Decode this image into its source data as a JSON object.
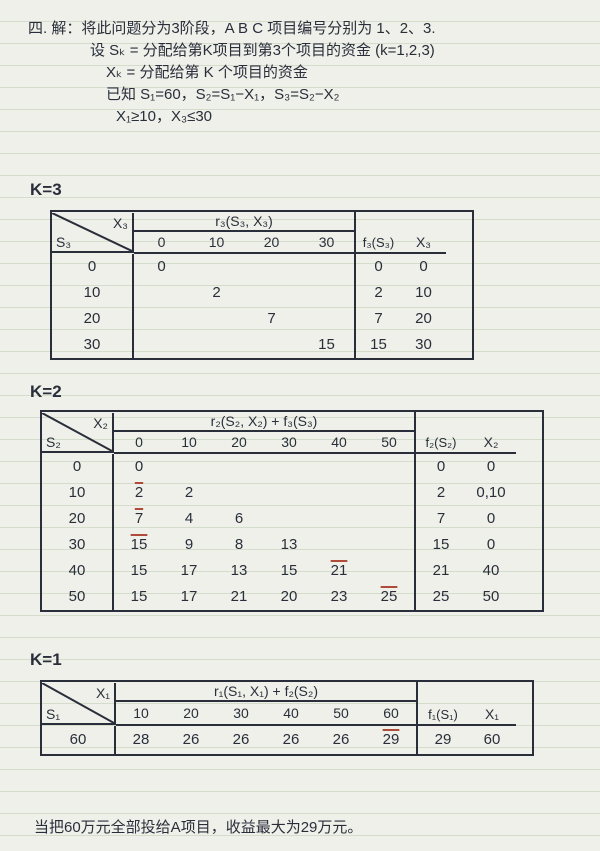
{
  "prose": {
    "l1": "四. 解：将此问题分为3阶段，A B C 项目编号分别为 1、2、3.",
    "l2": "设 Sₖ = 分配给第K项目到第3个项目的资金 (k=1,2,3)",
    "l3": "Xₖ = 分配给第 K 个项目的资金",
    "l4": "已知 S₁=60，S₂=S₁−X₁，S₃=S₂−X₂",
    "l5": "X₁≥10，X₃≤30"
  },
  "k3": {
    "label": "K=3",
    "diag_top": "X₃",
    "diag_left": "S₃",
    "group_label": "r₃(S₃, X₃)",
    "group_cols": [
      "0",
      "10",
      "20",
      "30"
    ],
    "f_label": "f₃(S₃)",
    "xstar_label": "X₃",
    "rows": [
      {
        "s": "0",
        "cells": [
          "0",
          "",
          "",
          ""
        ],
        "f": "0",
        "x": "0"
      },
      {
        "s": "10",
        "cells": [
          "",
          "2",
          "",
          ""
        ],
        "f": "2",
        "x": "10"
      },
      {
        "s": "20",
        "cells": [
          "",
          "",
          "7",
          ""
        ],
        "f": "7",
        "x": "20"
      },
      {
        "s": "30",
        "cells": [
          "",
          "",
          "",
          "15"
        ],
        "f": "15",
        "x": "30"
      }
    ]
  },
  "k2": {
    "label": "K=2",
    "diag_top": "X₂",
    "diag_left": "S₂",
    "group_label": "r₂(S₂, X₂) + f₃(S₃)",
    "group_cols": [
      "0",
      "10",
      "20",
      "30",
      "40",
      "50"
    ],
    "f_label": "f₂(S₂)",
    "xstar_label": "X₂",
    "rows": [
      {
        "s": "0",
        "cells": [
          "0",
          "",
          "",
          "",
          "",
          ""
        ],
        "f": "0",
        "x": "0"
      },
      {
        "s": "10",
        "cells": [
          "2",
          "2",
          "",
          "",
          "",
          ""
        ],
        "ov": [
          0
        ],
        "f": "2",
        "x": "0,10"
      },
      {
        "s": "20",
        "cells": [
          "7",
          "4",
          "6",
          "",
          "",
          ""
        ],
        "ov": [
          0
        ],
        "f": "7",
        "x": "0"
      },
      {
        "s": "30",
        "cells": [
          "15",
          "9",
          "8",
          "13",
          "",
          ""
        ],
        "ov": [
          0
        ],
        "f": "15",
        "x": "0"
      },
      {
        "s": "40",
        "cells": [
          "15",
          "17",
          "13",
          "15",
          "21",
          ""
        ],
        "ov": [
          4
        ],
        "f": "21",
        "x": "40"
      },
      {
        "s": "50",
        "cells": [
          "15",
          "17",
          "21",
          "20",
          "23",
          "25"
        ],
        "ov": [
          5
        ],
        "f": "25",
        "x": "50"
      }
    ]
  },
  "k1": {
    "label": "K=1",
    "diag_top": "X₁",
    "diag_left": "S₁",
    "group_label": "r₁(S₁, X₁) + f₂(S₂)",
    "group_cols": [
      "10",
      "20",
      "30",
      "40",
      "50",
      "60"
    ],
    "f_label": "f₁(S₁)",
    "xstar_label": "X₁",
    "rows": [
      {
        "s": "60",
        "cells": [
          "28",
          "26",
          "26",
          "26",
          "26",
          "29"
        ],
        "ov": [
          5
        ],
        "f": "29",
        "x": "60"
      }
    ]
  },
  "conclusion": "当把60万元全部投给A项目，收益最大为29万元。",
  "colors": {
    "bg": "#eef0e9",
    "rule": "#d4dccb",
    "ink": "#2a2e3a",
    "red": "#b04a3a"
  }
}
